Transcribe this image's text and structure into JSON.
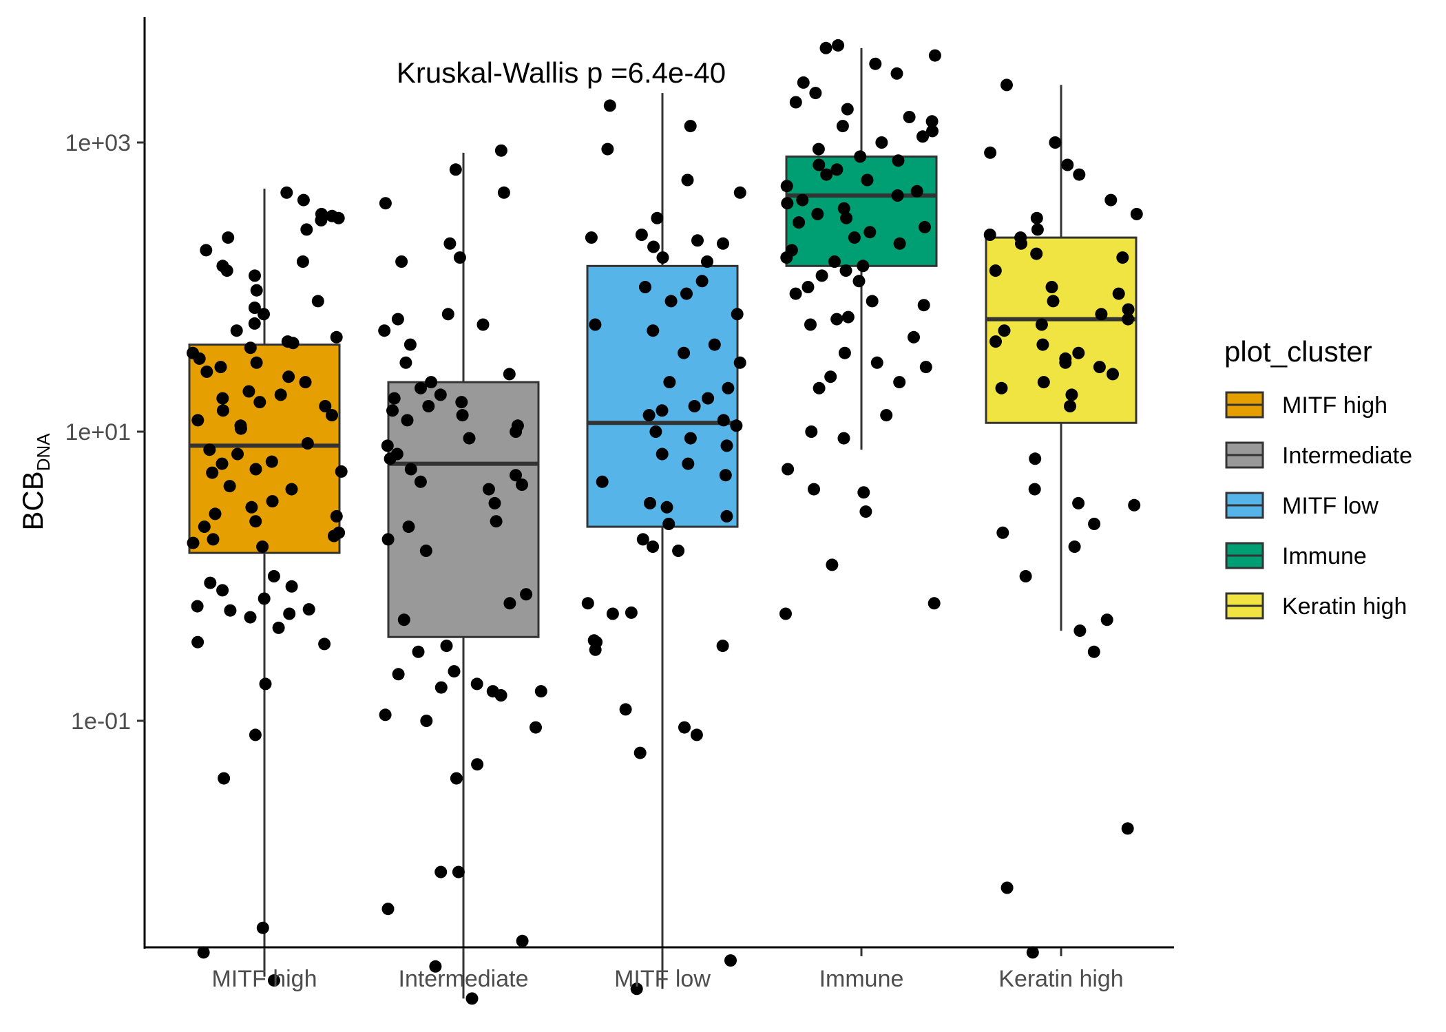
{
  "chart_data": {
    "type": "box",
    "scale": "log10",
    "ylabel_main": "BCB",
    "ylabel_sub": "DNA",
    "annotation": "Kruskal-Wallis p =6.4e-40",
    "y_ticks": [
      {
        "value": 0.1,
        "label": "1e-01"
      },
      {
        "value": 10,
        "label": "1e+01"
      },
      {
        "value": 1000,
        "label": "1e+03"
      }
    ],
    "ylim": [
      0.0009,
      7000
    ],
    "legend_title": "plot_cluster",
    "legend_position": "right",
    "categories": [
      "MITF high",
      "Intermediate",
      "MITF low",
      "Immune",
      "Keratin high"
    ],
    "colors": [
      "#E69F00",
      "#999999",
      "#56B4E9",
      "#009E73",
      "#F0E442"
    ],
    "boxes": [
      {
        "name": "MITF high",
        "whisker_low": 0.0017,
        "q1": 1.45,
        "median": 8.0,
        "q3": 40,
        "whisker_high": 480
      },
      {
        "name": "Intermediate",
        "whisker_low": 0.0012,
        "q1": 0.38,
        "median": 6.0,
        "q3": 22,
        "whisker_high": 850
      },
      {
        "name": "MITF low",
        "whisker_low": 0.0014,
        "q1": 2.2,
        "median": 11.5,
        "q3": 140,
        "whisker_high": 2200
      },
      {
        "name": "Immune",
        "whisker_low": 7.5,
        "q1": 140,
        "median": 430,
        "q3": 800,
        "whisker_high": 4500
      },
      {
        "name": "Keratin high",
        "whisker_low": 0.42,
        "q1": 11.5,
        "median": 60,
        "q3": 220,
        "whisker_high": 2500
      }
    ],
    "points": [
      [
        0.0037,
        0.0016,
        0.0025,
        0.04,
        0.08,
        0.18,
        0.35,
        0.34,
        0.44,
        0.52,
        0.58,
        0.59,
        0.55,
        0.62,
        0.7,
        0.8,
        0.85,
        0.9,
        1.0,
        1.6,
        1.8,
        1.7,
        1.9,
        2.0,
        2.2,
        2.4,
        2.6,
        2.7,
        3.0,
        3.3,
        4.0,
        4.2,
        5.2,
        5.3,
        5.5,
        6.0,
        6.2,
        7.0,
        7.5,
        8.3,
        10.5,
        11,
        12,
        13,
        14,
        15,
        16,
        17,
        18,
        19,
        22,
        24,
        26,
        28,
        30,
        32,
        35,
        38,
        41,
        42,
        45,
        50,
        56,
        65,
        72,
        80,
        95,
        120,
        130,
        140,
        150,
        180,
        220,
        250,
        290,
        300,
        310,
        320,
        400,
        450
      ],
      [
        0.0012,
        0.005,
        0.002,
        0.009,
        0.3,
        0.33,
        0.16,
        0.15,
        0.1,
        0.09,
        0.11,
        0.17,
        0.18,
        0.22,
        0.21,
        0.16,
        0.04,
        0.003,
        0.05,
        0.009,
        0.5,
        0.65,
        0.75,
        1.5,
        1.8,
        2.2,
        2.4,
        3.2,
        4.0,
        4.3,
        4.5,
        5.0,
        5.5,
        6.5,
        7.0,
        8.0,
        9.0,
        10,
        11,
        12,
        13,
        14,
        15,
        16,
        17,
        18,
        20,
        22,
        25,
        30,
        40,
        50,
        55,
        60,
        65,
        150,
        160,
        200,
        380,
        450,
        650,
        880
      ],
      [
        0.0014,
        0.0022,
        0.08,
        0.09,
        0.12,
        0.06,
        0.31,
        0.33,
        0.35,
        0.36,
        0.55,
        0.56,
        0.65,
        1.5,
        1.6,
        1.8,
        2.3,
        2.6,
        3.0,
        3.2,
        4.5,
        5.0,
        6.0,
        7.0,
        8.0,
        9.0,
        10,
        11,
        12,
        13,
        14,
        15,
        17,
        20,
        22,
        30,
        35,
        40,
        50,
        55,
        65,
        80,
        90,
        100,
        110,
        150,
        160,
        190,
        200,
        210,
        220,
        230,
        300,
        450,
        550,
        900,
        1300,
        1800
      ],
      [
        4.0,
        2.8,
        1.2,
        0.55,
        0.65,
        3.8,
        5.5,
        9.0,
        10,
        13,
        20,
        22,
        24,
        28,
        30,
        35,
        45,
        55,
        60,
        62,
        75,
        80,
        90,
        100,
        110,
        120,
        130,
        140,
        150,
        160,
        180,
        200,
        220,
        240,
        260,
        280,
        300,
        320,
        350,
        380,
        400,
        430,
        460,
        500,
        550,
        600,
        650,
        700,
        750,
        800,
        900,
        1000,
        1100,
        1200,
        1300,
        1400,
        1500,
        1700,
        1900,
        2200,
        2600,
        3000,
        3500,
        4000,
        4500,
        4700
      ],
      [
        0.0025,
        0.007,
        0.018,
        0.42,
        0.5,
        0.3,
        1.0,
        1.6,
        2.0,
        2.3,
        3.1,
        3.2,
        4.0,
        6.5,
        15,
        18,
        20,
        22,
        25,
        28,
        30,
        32,
        35,
        40,
        42,
        50,
        55,
        60,
        65,
        70,
        80,
        90,
        100,
        130,
        160,
        170,
        200,
        220,
        230,
        250,
        300,
        320,
        400,
        600,
        700,
        850,
        1000,
        2500
      ]
    ]
  }
}
